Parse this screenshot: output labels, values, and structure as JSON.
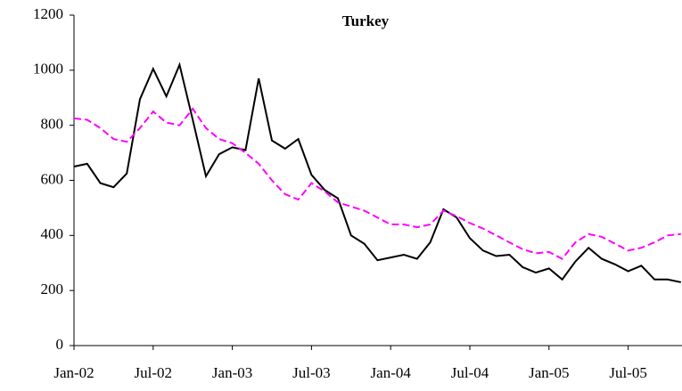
{
  "chart_data": {
    "type": "line",
    "title": "Turkey",
    "categories": [
      "Jan-02",
      null,
      null,
      null,
      null,
      null,
      "Jul-02",
      null,
      null,
      null,
      null,
      null,
      "Jan-03",
      null,
      null,
      null,
      null,
      null,
      "Jul-03",
      null,
      null,
      null,
      null,
      null,
      "Jan-04",
      null,
      null,
      null,
      null,
      null,
      "Jul-04",
      null,
      null,
      null,
      null,
      null,
      "Jan-05",
      null,
      null,
      null,
      null,
      null,
      "Jul-05",
      null,
      null,
      null,
      null
    ],
    "series": [
      {
        "color": "#000000",
        "dash": "solid",
        "values": [
          650,
          660,
          590,
          575,
          625,
          895,
          1005,
          905,
          1020,
          820,
          615,
          695,
          720,
          710,
          970,
          745,
          715,
          750,
          620,
          565,
          535,
          400,
          370,
          310,
          320,
          330,
          315,
          375,
          495,
          465,
          390,
          345,
          325,
          330,
          285,
          265,
          280,
          240,
          305,
          355,
          315,
          295,
          270,
          290,
          240,
          240,
          230
        ]
      },
      {
        "color": "#ff00ff",
        "dash": "dashed",
        "values": [
          825,
          820,
          790,
          750,
          740,
          790,
          850,
          810,
          800,
          860,
          790,
          750,
          735,
          700,
          660,
          600,
          550,
          530,
          590,
          560,
          520,
          505,
          490,
          465,
          440,
          440,
          430,
          440,
          490,
          470,
          445,
          425,
          400,
          375,
          350,
          335,
          340,
          315,
          375,
          405,
          395,
          370,
          345,
          355,
          375,
          400,
          405
        ]
      }
    ],
    "ylim": [
      0,
      1200
    ],
    "yticks": [
      0,
      200,
      400,
      600,
      800,
      1000,
      1200
    ],
    "grid": false
  }
}
